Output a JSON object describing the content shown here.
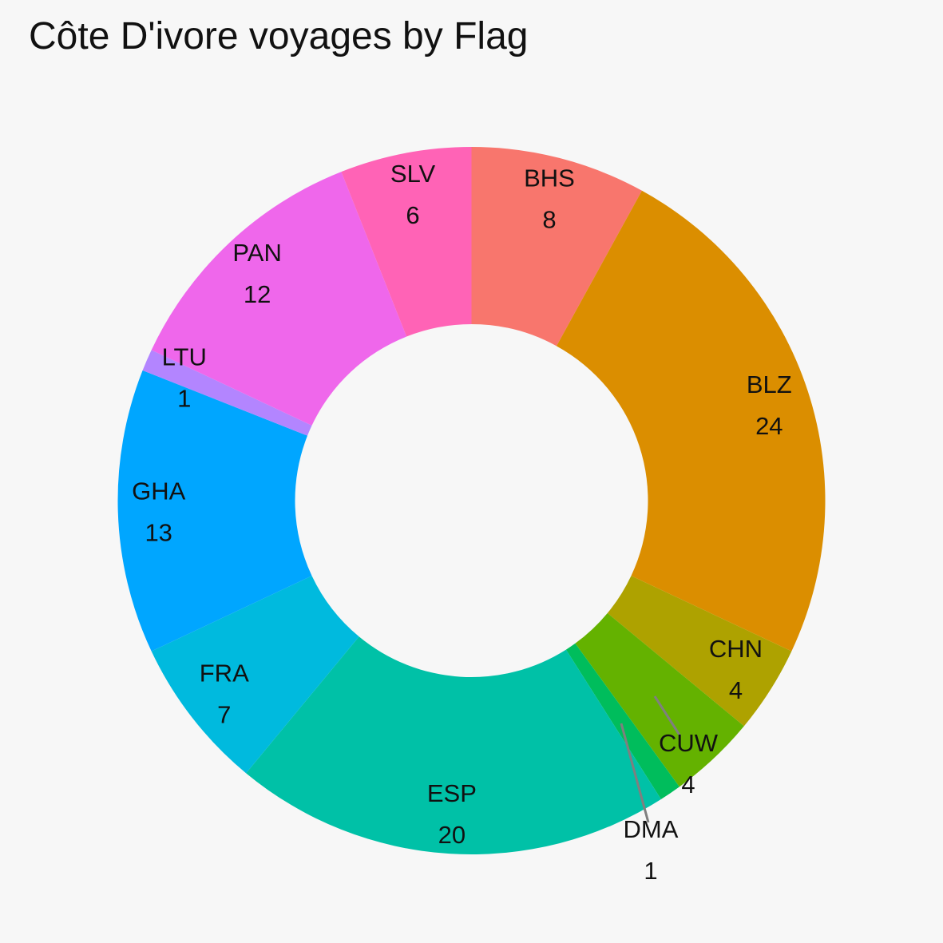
{
  "chart_data": {
    "type": "pie",
    "title": "Côte D'ivore voyages by Flag",
    "hole": true,
    "categories": [
      "BHS",
      "BLZ",
      "CHN",
      "CUW",
      "DMA",
      "ESP",
      "FRA",
      "GHA",
      "LTU",
      "PAN",
      "SLV"
    ],
    "values": [
      8,
      24,
      4,
      4,
      1,
      20,
      7,
      13,
      1,
      12,
      6
    ],
    "colors": [
      "#F8766D",
      "#DB8E00",
      "#AEA200",
      "#64B200",
      "#00BD5C",
      "#00C1A7",
      "#00BADE",
      "#00A6FF",
      "#B385FF",
      "#EF67EB",
      "#FF63B6"
    ],
    "order": "clockwise starting at 12 o'clock"
  }
}
